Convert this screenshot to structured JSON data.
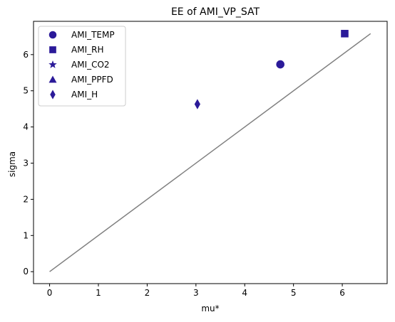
{
  "chart_data": {
    "type": "scatter",
    "title": "EE of AMI_VP_SAT",
    "xlabel": "mu*",
    "ylabel": "sigma",
    "xlim": [
      -0.33,
      6.92
    ],
    "ylim": [
      -0.33,
      6.92
    ],
    "xticks": [
      0,
      1,
      2,
      3,
      4,
      5,
      6
    ],
    "yticks": [
      0,
      1,
      2,
      3,
      4,
      5,
      6
    ],
    "grid": false,
    "legend_position": "top-left",
    "marker_color": "#2b1a99",
    "line_color": "#808080",
    "reference_line": {
      "x": [
        0,
        6.58
      ],
      "y": [
        0,
        6.58
      ]
    },
    "series": [
      {
        "name": "AMI_TEMP",
        "marker": "circle",
        "x": [
          4.73
        ],
        "y": [
          5.73
        ]
      },
      {
        "name": "AMI_RH",
        "marker": "square",
        "x": [
          6.05
        ],
        "y": [
          6.58
        ]
      },
      {
        "name": "AMI_CO2",
        "marker": "star",
        "x": [],
        "y": []
      },
      {
        "name": "AMI_PPFD",
        "marker": "triangle",
        "x": [],
        "y": []
      },
      {
        "name": "AMI_H",
        "marker": "diamond",
        "x": [
          3.03
        ],
        "y": [
          4.63
        ]
      }
    ]
  }
}
